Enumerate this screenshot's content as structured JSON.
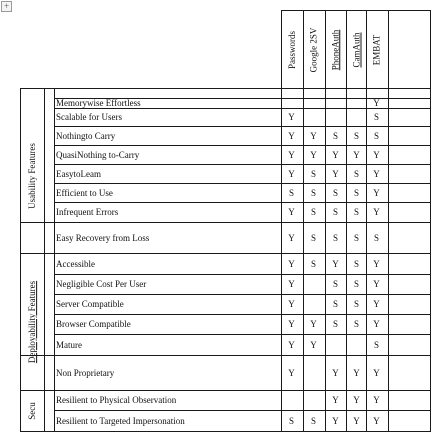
{
  "table": {
    "headers": [
      "Passwords",
      "Google 2SV",
      "PhoneAuth",
      "CamAuth",
      "EMBAT"
    ],
    "categories": [
      {
        "label": "Usability Features",
        "start": 0,
        "end": 7
      },
      {
        "label": "Deployability Features",
        "start": 8,
        "end": 13
      },
      {
        "label": "Secu",
        "start": 14,
        "end": 15
      }
    ],
    "rows": [
      {
        "feature": "Memorywise Effortless",
        "values": [
          "",
          "",
          "",
          "",
          "Y"
        ]
      },
      {
        "feature": "Scalable for Users",
        "values": [
          "Y",
          "",
          "",
          "",
          "S"
        ]
      },
      {
        "feature": "Nothingto Carry",
        "values": [
          "Y",
          "Y",
          "S",
          "S",
          "S"
        ]
      },
      {
        "feature": "QuasiNothing to-Carry",
        "values": [
          "Y",
          "Y",
          "Y",
          "Y",
          "Y"
        ]
      },
      {
        "feature": "EasytoLeam",
        "values": [
          "Y",
          "S",
          "Y",
          "S",
          "Y"
        ]
      },
      {
        "feature": "Efficient to Use",
        "values": [
          "S",
          "S",
          "S",
          "S",
          "Y"
        ]
      },
      {
        "feature": "Infrequent Errors",
        "values": [
          "Y",
          "S",
          "S",
          "S",
          "Y"
        ]
      },
      {
        "feature": "Easy Recovery from Loss",
        "values": [
          "Y",
          "S",
          "S",
          "S",
          "S"
        ]
      },
      {
        "feature": "Accessible",
        "values": [
          "Y",
          "S",
          "Y",
          "S",
          "Y"
        ]
      },
      {
        "feature": "Negligible  Cost Per User",
        "values": [
          "Y",
          "",
          "S",
          "S",
          "Y"
        ]
      },
      {
        "feature": "Server Compatible",
        "values": [
          "Y",
          "",
          "S",
          "S",
          "Y"
        ]
      },
      {
        "feature": "Browser Compatible",
        "values": [
          "Y",
          "Y",
          "S",
          "S",
          "Y"
        ]
      },
      {
        "feature": "Mature",
        "values": [
          "Y",
          "Y",
          "",
          "",
          "S"
        ]
      },
      {
        "feature": "Non Proprietary",
        "values": [
          "Y",
          "",
          "Y",
          "Y",
          "Y"
        ]
      },
      {
        "feature": "Resilient to Physical Observation",
        "values": [
          "",
          "",
          "Y",
          "Y",
          "Y"
        ]
      },
      {
        "feature": "Resilient to Targeted Impersonation",
        "values": [
          "S",
          "S",
          "Y",
          "Y",
          "Y"
        ]
      }
    ]
  }
}
